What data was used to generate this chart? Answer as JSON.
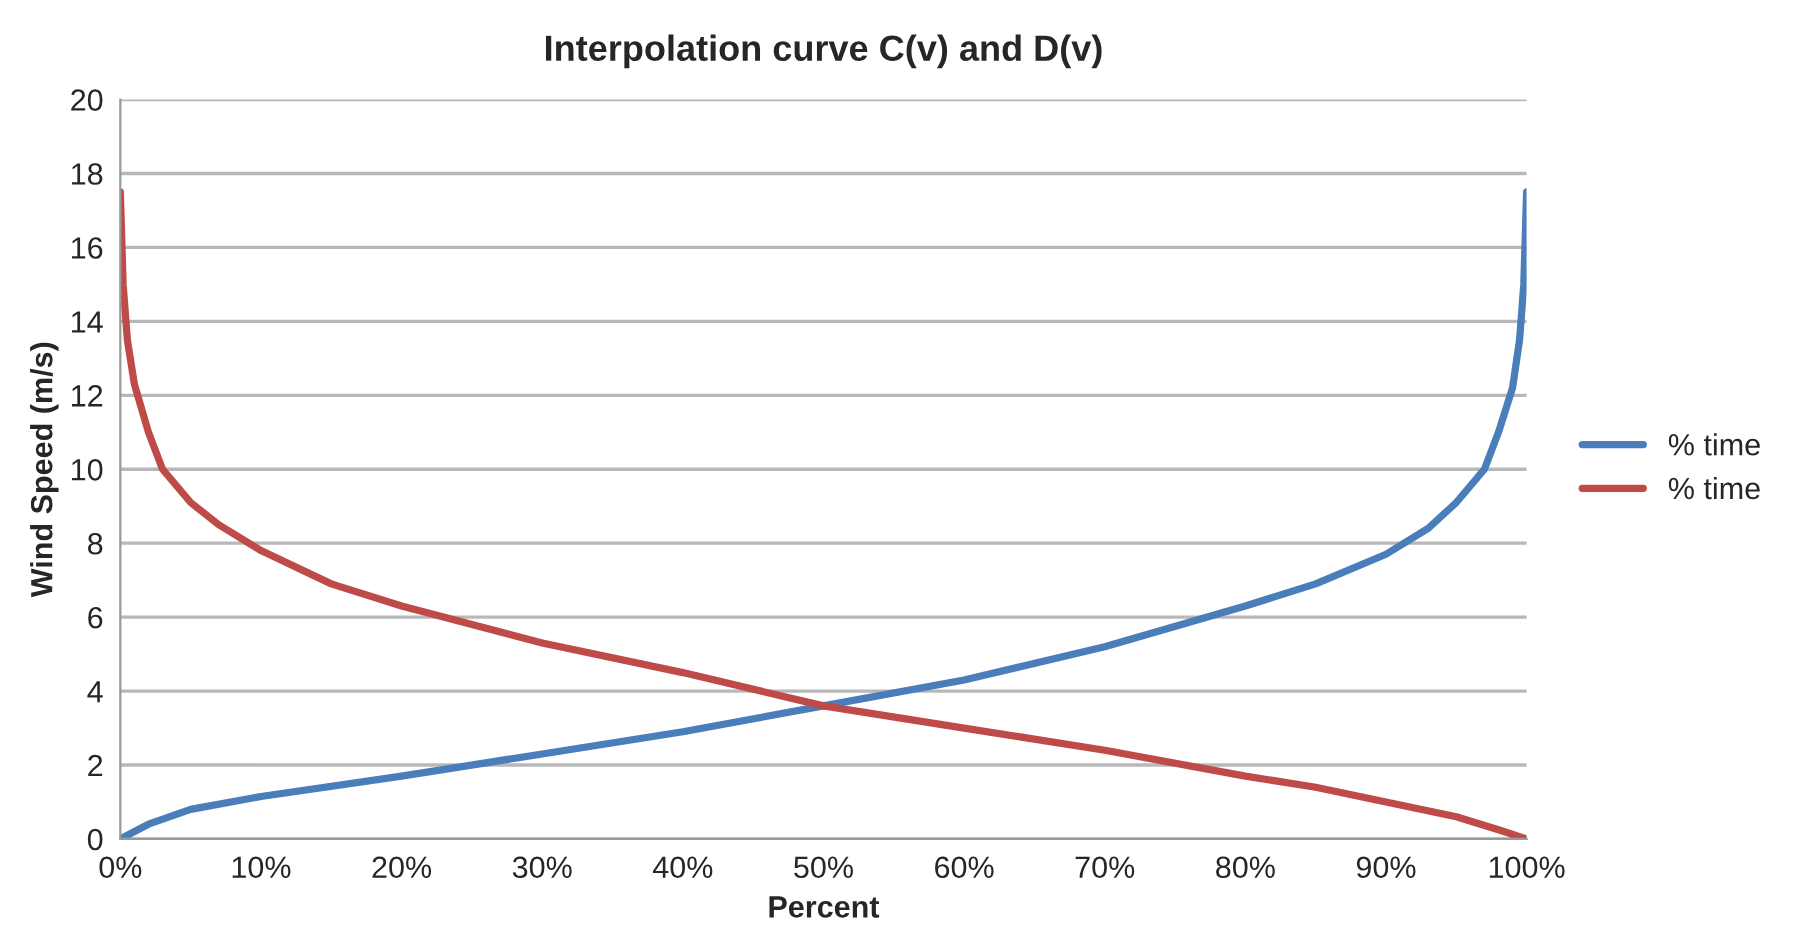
{
  "chart_data": {
    "type": "line",
    "title": "Interpolation curve C(v) and D(v)",
    "xlabel": "Percent",
    "ylabel": "Wind Speed (m/s)",
    "xlim": [
      0,
      100
    ],
    "xticks": [
      {
        "value": 0,
        "label": "0%"
      },
      {
        "value": 10,
        "label": "10%"
      },
      {
        "value": 20,
        "label": "20%"
      },
      {
        "value": 30,
        "label": "30%"
      },
      {
        "value": 40,
        "label": "40%"
      },
      {
        "value": 50,
        "label": "50%"
      },
      {
        "value": 60,
        "label": "60%"
      },
      {
        "value": 70,
        "label": "70%"
      },
      {
        "value": 80,
        "label": "80%"
      },
      {
        "value": 90,
        "label": "90%"
      },
      {
        "value": 100,
        "label": "100%"
      }
    ],
    "ylim": [
      0,
      20
    ],
    "yticks": [
      0,
      2,
      4,
      6,
      8,
      10,
      12,
      14,
      16,
      18,
      20
    ],
    "grid": "y",
    "legend": "right",
    "marker": "none",
    "line_style": "solid",
    "series": [
      {
        "name": "% time",
        "color": "#4a7ebb",
        "x": [
          0,
          2,
          5,
          10,
          20,
          30,
          40,
          50,
          60,
          70,
          80,
          85,
          90,
          93,
          95,
          97,
          98,
          99,
          99.5,
          99.8,
          100
        ],
        "values": [
          0,
          0.4,
          0.8,
          1.15,
          1.7,
          2.3,
          2.9,
          3.6,
          4.3,
          5.2,
          6.3,
          6.9,
          7.7,
          8.4,
          9.1,
          10,
          11,
          12.2,
          13.5,
          15,
          17.5
        ]
      },
      {
        "name": "% time",
        "color": "#be4b48",
        "x": [
          0,
          0.2,
          0.5,
          1,
          2,
          3,
          5,
          7,
          10,
          15,
          20,
          30,
          40,
          50,
          60,
          70,
          80,
          85,
          90,
          95,
          98,
          100
        ],
        "values": [
          17.5,
          15,
          13.5,
          12.3,
          11,
          10,
          9.1,
          8.5,
          7.8,
          6.9,
          6.3,
          5.3,
          4.5,
          3.6,
          3.0,
          2.4,
          1.7,
          1.4,
          1.0,
          0.6,
          0.25,
          0
        ]
      }
    ]
  }
}
